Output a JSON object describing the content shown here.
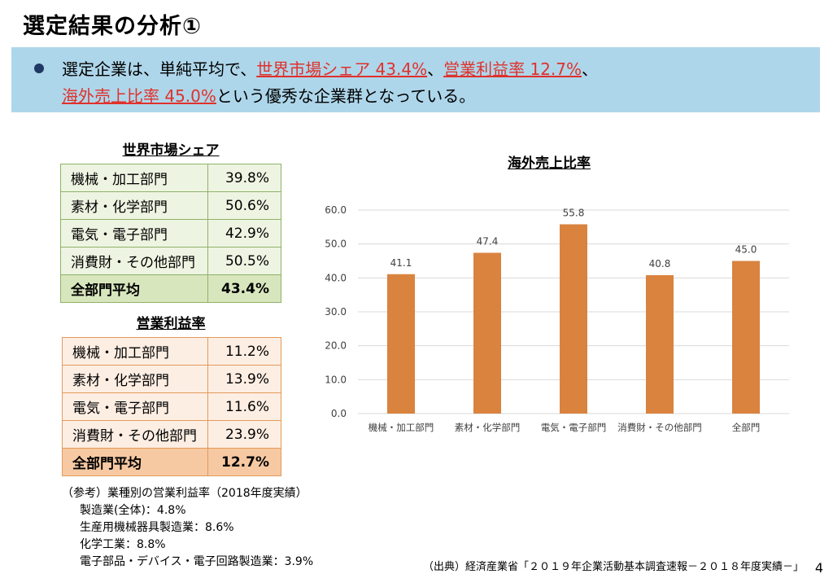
{
  "title": "選定結果の分析①",
  "summary": {
    "part1": "選定企業は、単純平均で、",
    "hl1": "世界市場シェア 43.4%",
    "sep1": "、",
    "hl2": "営業利益率 12.7%",
    "sep2": "、",
    "hl3": "海外売上比率 45.0%",
    "part2": "という優秀な企業群となっている。"
  },
  "colors": {
    "banner": "#aed6ea",
    "highlight": "#e0312b",
    "bar": "#d9833f"
  },
  "share_table": {
    "title": "世界市場シェア",
    "rows": [
      {
        "label": "機械・加工部門",
        "value": "39.8%"
      },
      {
        "label": "素材・化学部門",
        "value": "50.6%"
      },
      {
        "label": "電気・電子部門",
        "value": "42.9%"
      },
      {
        "label": "消費財・その他部門",
        "value": "50.5%"
      }
    ],
    "total": {
      "label": "全部門平均",
      "value": "43.4%"
    }
  },
  "profit_table": {
    "title": "営業利益率",
    "rows": [
      {
        "label": "機械・加工部門",
        "value": "11.2%"
      },
      {
        "label": "素材・化学部門",
        "value": "13.9%"
      },
      {
        "label": "電気・電子部門",
        "value": "11.6%"
      },
      {
        "label": "消費財・その他部門",
        "value": "23.9%"
      }
    ],
    "total": {
      "label": "全部門平均",
      "value": "12.7%"
    }
  },
  "reference": {
    "heading": "（参考）業種別の営業利益率（2018年度実績）",
    "items": [
      "製造業(全体)：4.8%",
      "生産用機械器具製造業：8.6%",
      "化学工業：8.8%",
      "電子部品・デバイス・電子回路製造業：3.9%"
    ]
  },
  "source": "（出典）経済産業省「２０１９年企業活動基本調査速報－２０１８年度実績－」",
  "page_number": "4",
  "chart_data": {
    "type": "bar",
    "title": "海外売上比率",
    "categories": [
      "機械・加工部門",
      "素材・化学部門",
      "電気・電子部門",
      "消費財・その他部門",
      "全部門"
    ],
    "values": [
      41.1,
      47.4,
      55.8,
      40.8,
      45.0
    ],
    "value_labels": [
      "41.1",
      "47.4",
      "55.8",
      "40.8",
      "45.0"
    ],
    "ylim": [
      0,
      60
    ],
    "yticks": [
      "0.0",
      "10.0",
      "20.0",
      "30.0",
      "40.0",
      "50.0",
      "60.0"
    ],
    "xlabel": "",
    "ylabel": "",
    "grid": true
  }
}
